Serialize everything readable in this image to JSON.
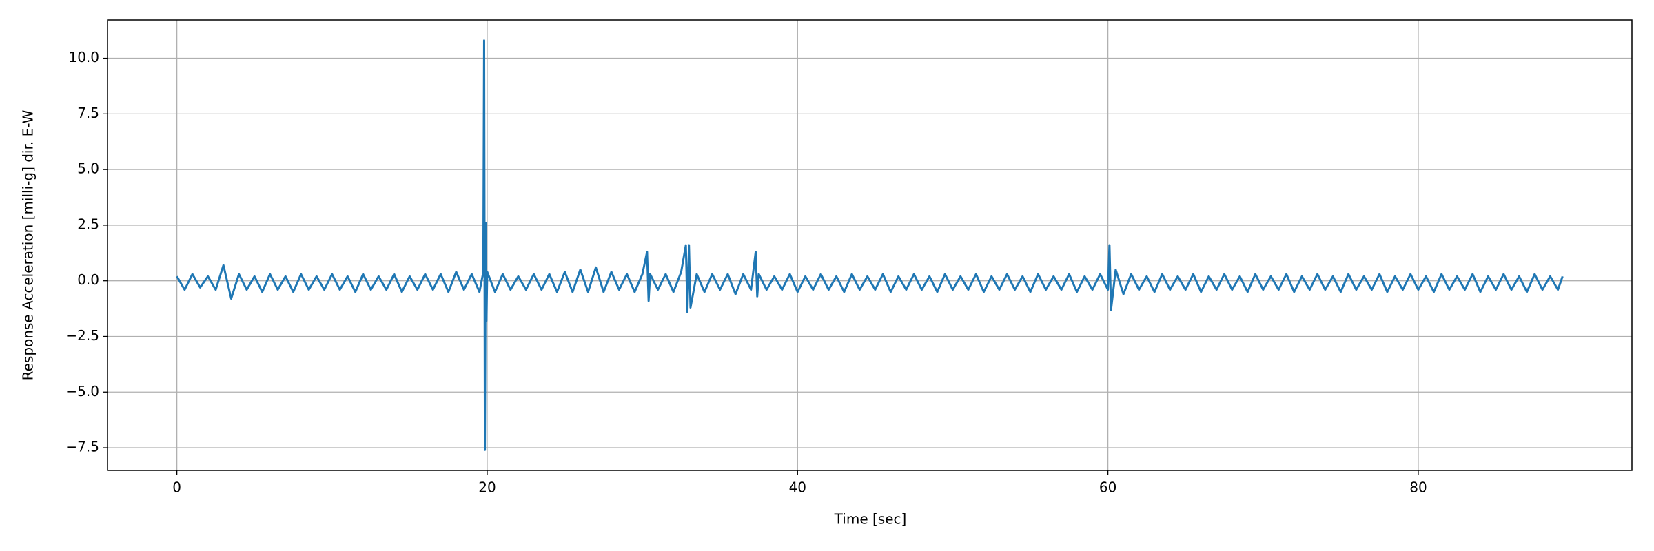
{
  "chart_data": {
    "type": "line",
    "xlabel": "Time [sec]",
    "ylabel": "Response Acceleration [milli-g] dir. E-W",
    "color": "#1f77b4",
    "x": [
      0,
      0.5,
      1,
      1.5,
      2,
      2.5,
      3,
      3.5,
      4,
      4.5,
      5,
      5.5,
      6,
      6.5,
      7,
      7.5,
      8,
      8.5,
      9,
      9.5,
      10,
      10.5,
      11,
      11.5,
      12,
      12.5,
      13,
      13.5,
      14,
      14.5,
      15,
      15.5,
      16,
      16.5,
      17,
      17.5,
      18,
      18.5,
      19,
      19.5,
      19.75,
      19.8,
      19.85,
      19.9,
      19.95,
      20,
      20.5,
      21,
      21.5,
      22,
      22.5,
      23,
      23.5,
      24,
      24.5,
      25,
      25.5,
      26,
      26.5,
      27,
      27.5,
      28,
      28.5,
      29,
      29.5,
      30,
      30.3,
      30.4,
      30.5,
      31,
      31.5,
      32,
      32.5,
      32.8,
      32.9,
      33,
      33.1,
      33.5,
      34,
      34.5,
      35,
      35.5,
      36,
      36.5,
      37,
      37.3,
      37.4,
      37.5,
      38,
      38.5,
      39,
      39.5,
      40,
      40.5,
      41,
      41.5,
      42,
      42.5,
      43,
      43.5,
      44,
      44.5,
      45,
      45.5,
      46,
      46.5,
      47,
      47.5,
      48,
      48.5,
      49,
      49.5,
      50,
      50.5,
      51,
      51.5,
      52,
      52.5,
      53,
      53.5,
      54,
      54.5,
      55,
      55.5,
      56,
      56.5,
      57,
      57.5,
      58,
      58.5,
      59,
      59.5,
      60,
      60.1,
      60.2,
      60.5,
      61,
      61.5,
      62,
      62.5,
      63,
      63.5,
      64,
      64.5,
      65,
      65.5,
      66,
      66.5,
      67,
      67.5,
      68,
      68.5,
      69,
      69.5,
      70,
      70.5,
      71,
      71.5,
      72,
      72.5,
      73,
      73.5,
      74,
      74.5,
      75,
      75.5,
      76,
      76.5,
      77,
      77.5,
      78,
      78.5,
      79,
      79.5,
      80,
      80.5,
      81,
      81.5,
      82,
      82.5,
      83,
      83.5,
      84,
      84.5,
      85,
      85.5,
      86,
      86.5,
      87,
      87.5,
      88,
      88.5,
      89,
      89.3
    ],
    "values": [
      0.2,
      -0.4,
      0.3,
      -0.3,
      0.2,
      -0.4,
      0.7,
      -0.8,
      0.3,
      -0.4,
      0.2,
      -0.5,
      0.3,
      -0.4,
      0.2,
      -0.5,
      0.3,
      -0.4,
      0.2,
      -0.4,
      0.3,
      -0.4,
      0.2,
      -0.5,
      0.3,
      -0.4,
      0.2,
      -0.4,
      0.3,
      -0.5,
      0.2,
      -0.4,
      0.3,
      -0.4,
      0.3,
      -0.5,
      0.4,
      -0.4,
      0.3,
      -0.5,
      0.4,
      10.8,
      -7.6,
      2.6,
      -1.8,
      0.4,
      -0.5,
      0.3,
      -0.4,
      0.2,
      -0.4,
      0.3,
      -0.4,
      0.3,
      -0.5,
      0.4,
      -0.5,
      0.5,
      -0.5,
      0.6,
      -0.5,
      0.4,
      -0.4,
      0.3,
      -0.5,
      0.3,
      1.3,
      -0.9,
      0.3,
      -0.4,
      0.3,
      -0.5,
      0.4,
      1.6,
      -1.4,
      1.6,
      -1.2,
      0.3,
      -0.5,
      0.3,
      -0.4,
      0.3,
      -0.6,
      0.3,
      -0.4,
      1.3,
      -0.7,
      0.3,
      -0.4,
      0.2,
      -0.4,
      0.3,
      -0.5,
      0.2,
      -0.4,
      0.3,
      -0.4,
      0.2,
      -0.5,
      0.3,
      -0.4,
      0.2,
      -0.4,
      0.3,
      -0.5,
      0.2,
      -0.4,
      0.3,
      -0.4,
      0.2,
      -0.5,
      0.3,
      -0.4,
      0.2,
      -0.4,
      0.3,
      -0.5,
      0.2,
      -0.4,
      0.3,
      -0.4,
      0.2,
      -0.5,
      0.3,
      -0.4,
      0.2,
      -0.4,
      0.3,
      -0.5,
      0.2,
      -0.4,
      0.3,
      -0.4,
      1.6,
      -1.3,
      0.5,
      -0.6,
      0.3,
      -0.4,
      0.2,
      -0.5,
      0.3,
      -0.4,
      0.2,
      -0.4,
      0.3,
      -0.5,
      0.2,
      -0.4,
      0.3,
      -0.4,
      0.2,
      -0.5,
      0.3,
      -0.4,
      0.2,
      -0.4,
      0.3,
      -0.5,
      0.2,
      -0.4,
      0.3,
      -0.4,
      0.2,
      -0.5,
      0.3,
      -0.4,
      0.2,
      -0.4,
      0.3,
      -0.5,
      0.2,
      -0.4,
      0.3,
      -0.4,
      0.2,
      -0.5,
      0.3,
      -0.4,
      0.2,
      -0.4,
      0.3,
      -0.5,
      0.2,
      -0.4,
      0.3,
      -0.4,
      0.2,
      -0.5,
      0.3,
      -0.4,
      0.2,
      -0.4,
      0.2
    ],
    "xlim": [
      -4.47,
      93.77
    ],
    "ylim": [
      -8.52,
      11.72
    ],
    "xticks": [
      0,
      20,
      40,
      60,
      80
    ],
    "yticks": [
      {
        "value": -7.5,
        "label": "−7.5"
      },
      {
        "value": -5,
        "label": "−5.0"
      },
      {
        "value": -2.5,
        "label": "−2.5"
      },
      {
        "value": 0,
        "label": "0.0"
      },
      {
        "value": 2.5,
        "label": "2.5"
      },
      {
        "value": 5,
        "label": "5.0"
      },
      {
        "value": 7.5,
        "label": "7.5"
      },
      {
        "value": 10,
        "label": "10.0"
      }
    ],
    "grid": true
  }
}
